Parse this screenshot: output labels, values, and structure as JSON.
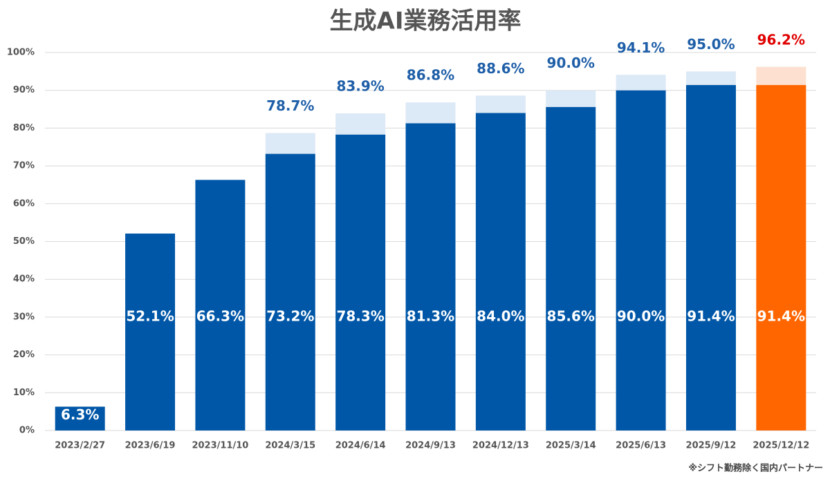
{
  "chart_data": {
    "type": "stacked_bar",
    "title": "生成AI業務活用率",
    "categories": [
      "2023/2/27",
      "2023/6/19",
      "2023/11/10",
      "2024/3/15",
      "2024/6/14",
      "2024/9/13",
      "2024/12/13",
      "2025/3/14",
      "2025/6/13",
      "2025/9/12",
      "2025/12/12"
    ],
    "series": [
      {
        "color": "#0057a8",
        "colors": [
          "#0057a8",
          "#0057a8",
          "#0057a8",
          "#0057a8",
          "#0057a8",
          "#0057a8",
          "#0057a8",
          "#0057a8",
          "#0057a8",
          "#0057a8",
          "#ff6600"
        ],
        "values": [
          6.3,
          52.1,
          66.3,
          73.2,
          78.3,
          81.3,
          84.0,
          85.6,
          90.0,
          91.4,
          91.4
        ],
        "value_labels": [
          "6.3%",
          "52.1%",
          "66.3%",
          "73.2%",
          "78.3%",
          "81.3%",
          "84.0%",
          "85.6%",
          "90.0%",
          "91.4%",
          "91.4%"
        ]
      },
      {
        "color": "#dce9f6",
        "colors": [
          "#dce9f6",
          "#dce9f6",
          "#dce9f6",
          "#dce9f6",
          "#dce9f6",
          "#dce9f6",
          "#dce9f6",
          "#dce9f6",
          "#dce9f6",
          "#dce9f6",
          "#fde0cf"
        ],
        "values": [
          null,
          null,
          null,
          5.5,
          5.6,
          5.5,
          4.6,
          4.4,
          4.1,
          3.6,
          4.8
        ]
      }
    ],
    "totals": [
      null,
      null,
      null,
      78.7,
      83.9,
      86.8,
      88.6,
      90.0,
      94.1,
      95.0,
      96.2
    ],
    "total_labels": [
      null,
      null,
      null,
      "78.7%",
      "83.9%",
      "86.8%",
      "88.6%",
      "90.0%",
      "94.1%",
      "95.0%",
      "96.2%"
    ],
    "total_colors": [
      "#1f5fa8",
      "#1f5fa8",
      "#1f5fa8",
      "#1f5fa8",
      "#1f5fa8",
      "#1f5fa8",
      "#1f5fa8",
      "#1f5fa8",
      "#1f5fa8",
      "#1f5fa8",
      "#e00000"
    ],
    "ylim": [
      0,
      100
    ],
    "yticks": [
      {
        "value": 0,
        "label": "0%"
      },
      {
        "value": 10,
        "label": "10%"
      },
      {
        "value": 20,
        "label": "20%"
      },
      {
        "value": 30,
        "label": "30%"
      },
      {
        "value": 40,
        "label": "40%"
      },
      {
        "value": 50,
        "label": "50%"
      },
      {
        "value": 60,
        "label": "60%"
      },
      {
        "value": 70,
        "label": "70%"
      },
      {
        "value": 80,
        "label": "80%"
      },
      {
        "value": 90,
        "label": "90%"
      },
      {
        "value": 100,
        "label": "100%"
      }
    ],
    "grid": true,
    "footnote": "※シフト勤務除く国内パートナー"
  }
}
